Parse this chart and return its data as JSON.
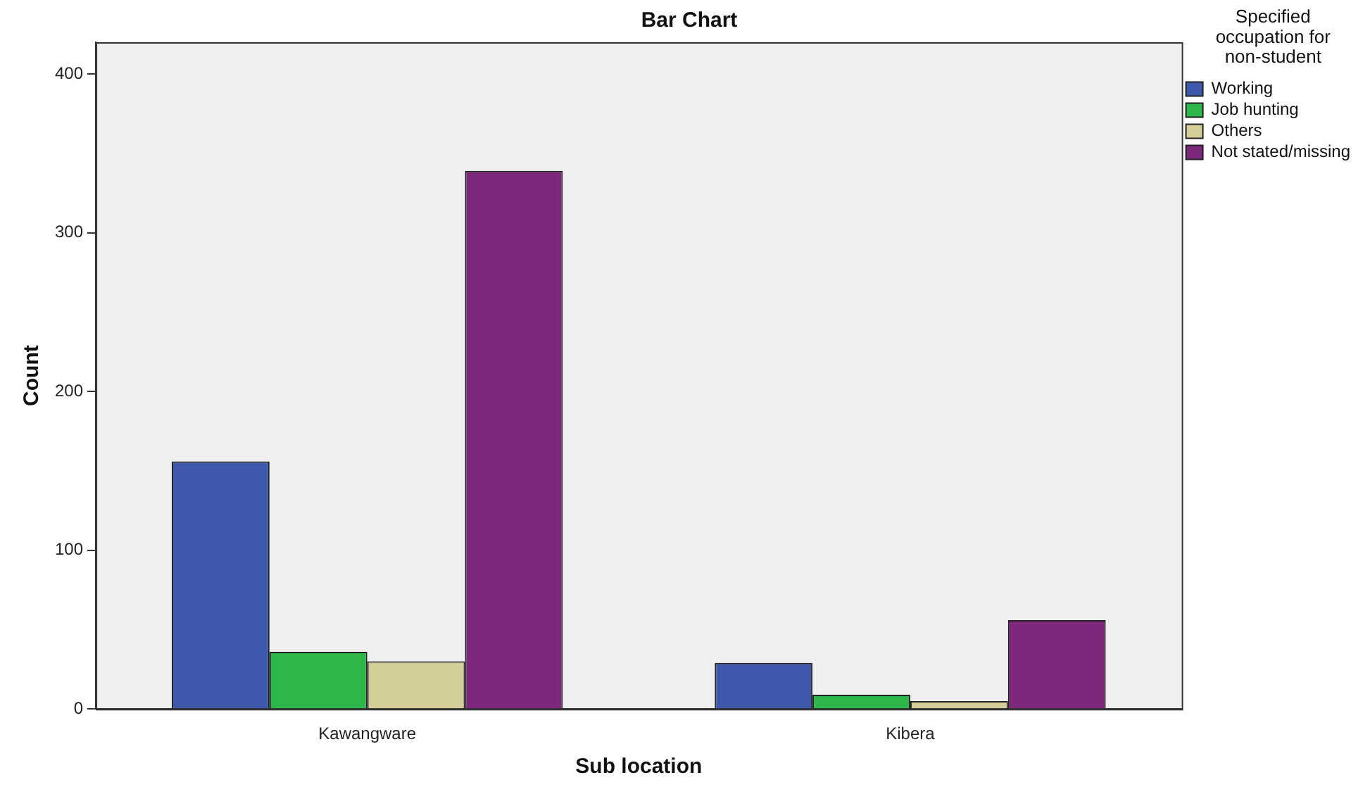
{
  "chart_data": {
    "type": "bar",
    "title": "Bar Chart",
    "xlabel": "Sub location",
    "ylabel": "Count",
    "legend_title": "Specified occupation for non-student",
    "categories": [
      "Kawangware",
      "Kibera"
    ],
    "series": [
      {
        "name": "Working",
        "color": "#3e58ac",
        "values": [
          156,
          29
        ]
      },
      {
        "name": "Job hunting",
        "color": "#2db74a",
        "values": [
          36,
          9
        ]
      },
      {
        "name": "Others",
        "color": "#d3ce97",
        "values": [
          30,
          5
        ]
      },
      {
        "name": "Not stated/missing",
        "color": "#7d287a",
        "values": [
          339,
          56
        ]
      }
    ],
    "ylim": [
      0,
      420
    ],
    "yticks": [
      0,
      100,
      200,
      300,
      400
    ],
    "grid": false,
    "legend": "top right"
  }
}
